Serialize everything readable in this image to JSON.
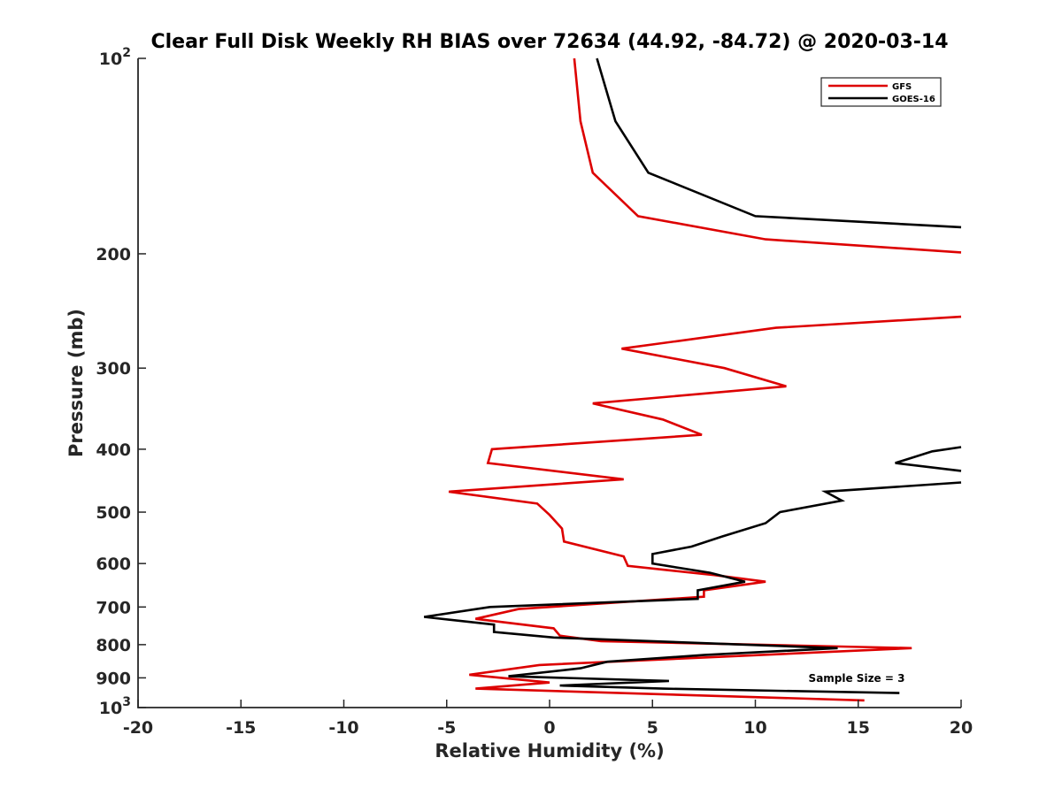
{
  "chart_data": {
    "type": "line",
    "title": "Clear Full Disk Weekly RH BIAS over 72634 (44.92, -84.72) @ 2020-03-14",
    "xlabel": "Relative Humidity (%)",
    "ylabel": "Pressure (mb)",
    "xlim": [
      -20,
      20
    ],
    "ylim": [
      100,
      1000
    ],
    "yscale": "log",
    "y_reversed": true,
    "grid": false,
    "legend_position": "top-right",
    "x_ticks": [
      -20,
      -15,
      -10,
      -5,
      0,
      5,
      10,
      15,
      20
    ],
    "x_tick_labels": [
      "-20",
      "-15",
      "-10",
      "-5",
      "0",
      "5",
      "10",
      "15",
      "20"
    ],
    "y_ticks": [
      {
        "value": 100,
        "base": "10",
        "exp": "2"
      },
      {
        "value": 200,
        "label": "200"
      },
      {
        "value": 300,
        "label": "300"
      },
      {
        "value": 400,
        "label": "400"
      },
      {
        "value": 500,
        "label": "500"
      },
      {
        "value": 600,
        "label": "600"
      },
      {
        "value": 700,
        "label": "700"
      },
      {
        "value": 800,
        "label": "800"
      },
      {
        "value": 900,
        "label": "900"
      },
      {
        "value": 1000,
        "base": "10",
        "exp": "3"
      }
    ],
    "annotation": "Sample Size = 3",
    "series": [
      {
        "name": "GFS",
        "color": "#dd0000",
        "points": [
          [
            1.2,
            100
          ],
          [
            1.5,
            125
          ],
          [
            2.1,
            150
          ],
          [
            4.3,
            175
          ],
          [
            10.5,
            190
          ],
          [
            20,
            199
          ],
          [
            null,
            null
          ],
          [
            20,
            250
          ],
          [
            11,
            260
          ],
          [
            3.5,
            280
          ],
          [
            8.5,
            300
          ],
          [
            11.5,
            320
          ],
          [
            2.1,
            340
          ],
          [
            5.5,
            360
          ],
          [
            7.4,
            380
          ],
          [
            -2.8,
            400
          ],
          [
            -3,
            420
          ],
          [
            3.6,
            445
          ],
          [
            -4.9,
            465
          ],
          [
            -0.6,
            485
          ],
          [
            0,
            505
          ],
          [
            0.6,
            530
          ],
          [
            0.7,
            555
          ],
          [
            3.6,
            585
          ],
          [
            3.8,
            605
          ],
          [
            8,
            625
          ],
          [
            10.5,
            640
          ],
          [
            7.5,
            660
          ],
          [
            7.5,
            675
          ],
          [
            -1.5,
            705
          ],
          [
            -3.6,
            730
          ],
          [
            0.2,
            755
          ],
          [
            0.5,
            775
          ],
          [
            2.5,
            790
          ],
          [
            17.6,
            810
          ],
          [
            -0.5,
            860
          ],
          [
            -3.9,
            890
          ],
          [
            0,
            915
          ],
          [
            -3.6,
            935
          ],
          [
            15.3,
            975
          ]
        ]
      },
      {
        "name": "GOES-16",
        "color": "#000000",
        "points": [
          [
            2.3,
            100
          ],
          [
            3.2,
            125
          ],
          [
            4.8,
            150
          ],
          [
            10,
            175
          ],
          [
            20,
            182
          ],
          [
            null,
            null
          ],
          [
            20,
            397
          ],
          [
            18.6,
            403
          ],
          [
            16.8,
            420
          ],
          [
            20,
            432
          ],
          [
            null,
            null
          ],
          [
            20,
            450
          ],
          [
            13.4,
            465
          ],
          [
            14.2,
            480
          ],
          [
            11.2,
            500
          ],
          [
            10.5,
            520
          ],
          [
            8.4,
            545
          ],
          [
            6.9,
            565
          ],
          [
            5,
            580
          ],
          [
            5,
            600
          ],
          [
            7.8,
            620
          ],
          [
            9.5,
            640
          ],
          [
            7.2,
            660
          ],
          [
            7.2,
            680
          ],
          [
            -2.9,
            700
          ],
          [
            -6.1,
            725
          ],
          [
            -2.7,
            745
          ],
          [
            -2.7,
            765
          ],
          [
            0.2,
            780
          ],
          [
            14,
            810
          ],
          [
            7.5,
            830
          ],
          [
            2.8,
            850
          ],
          [
            1.5,
            870
          ],
          [
            -2,
            895
          ],
          [
            5.8,
            910
          ],
          [
            0.5,
            925
          ],
          [
            5.5,
            935
          ],
          [
            17,
            950
          ]
        ]
      }
    ]
  }
}
